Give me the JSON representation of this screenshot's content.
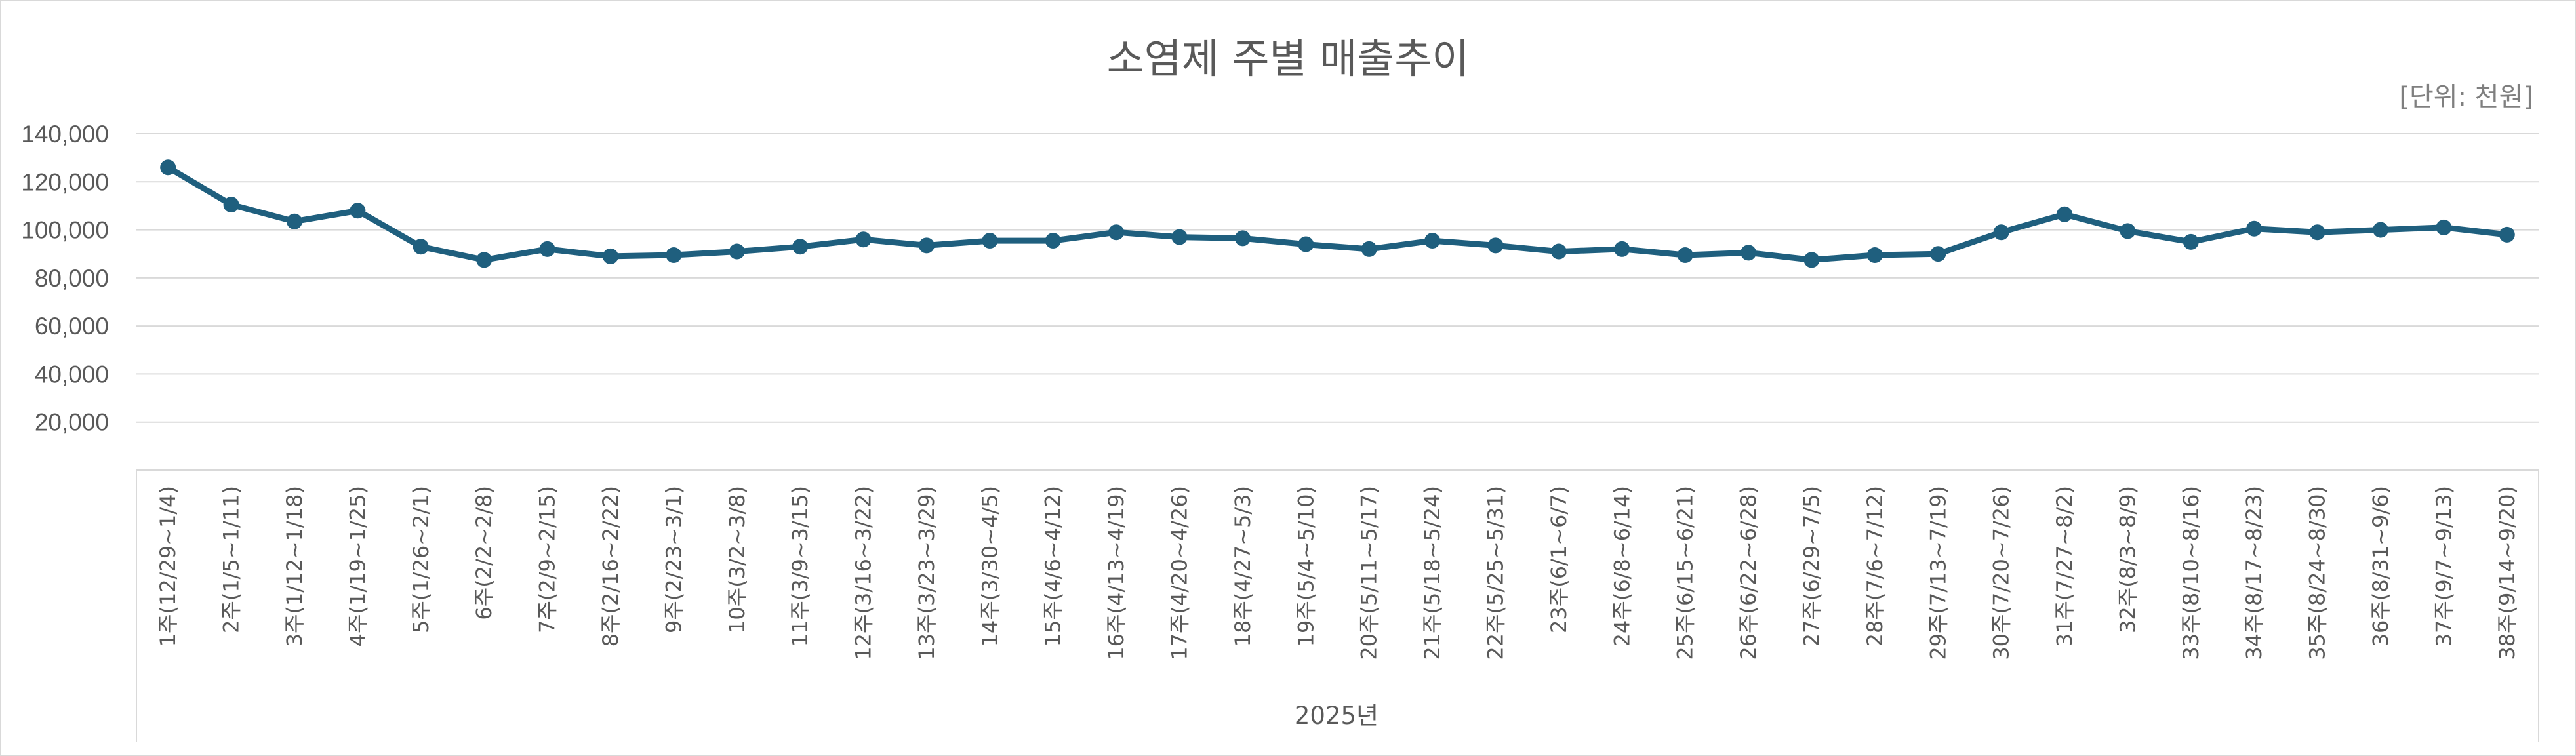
{
  "chart_data": {
    "type": "line",
    "title": "소염제 주별 매출추이",
    "unit_label": "[단위: 천원]",
    "x_group_label": "2025년",
    "ylim": [
      0,
      140000
    ],
    "y_ticks": [
      "140,000",
      "120,000",
      "100,000",
      "80,000",
      "60,000",
      "40,000",
      "20,000"
    ],
    "y_tick_values": [
      140000,
      120000,
      100000,
      80000,
      60000,
      40000,
      20000
    ],
    "grid": true,
    "legend": "none",
    "series_color": "#1f5f7e",
    "categories": [
      "1주(12/29~1/4)",
      "2주(1/5~1/11)",
      "3주(1/12~1/18)",
      "4주(1/19~1/25)",
      "5주(1/26~2/1)",
      "6주(2/2~2/8)",
      "7주(2/9~2/15)",
      "8주(2/16~2/22)",
      "9주(2/23~3/1)",
      "10주(3/2~3/8)",
      "11주(3/9~3/15)",
      "12주(3/16~3/22)",
      "13주(3/23~3/29)",
      "14주(3/30~4/5)",
      "15주(4/6~4/12)",
      "16주(4/13~4/19)",
      "17주(4/20~4/26)",
      "18주(4/27~5/3)",
      "19주(5/4~5/10)",
      "20주(5/11~5/17)",
      "21주(5/18~5/24)",
      "22주(5/25~5/31)",
      "23주(6/1~6/7)",
      "24주(6/8~6/14)",
      "25주(6/15~6/21)",
      "26주(6/22~6/28)",
      "27주(6/29~7/5)",
      "28주(7/6~7/12)",
      "29주(7/13~7/19)",
      "30주(7/20~7/26)",
      "31주(7/27~8/2)",
      "32주(8/3~8/9)",
      "33주(8/10~8/16)",
      "34주(8/17~8/23)",
      "35주(8/24~8/30)",
      "36주(8/31~9/6)",
      "37주(9/7~9/13)",
      "38주(9/14~9/20)"
    ],
    "series": [
      {
        "values": [
          126000,
          110500,
          103500,
          108000,
          93000,
          87500,
          92000,
          89000,
          89500,
          91000,
          93000,
          96000,
          93500,
          95500,
          95500,
          99000,
          97000,
          96500,
          94000,
          92000,
          95500,
          93500,
          91000,
          92000,
          89500,
          90500,
          87500,
          89500,
          90000,
          99000,
          106500,
          99500,
          95000,
          100500,
          99000,
          100000,
          101000,
          98000
        ]
      }
    ]
  }
}
